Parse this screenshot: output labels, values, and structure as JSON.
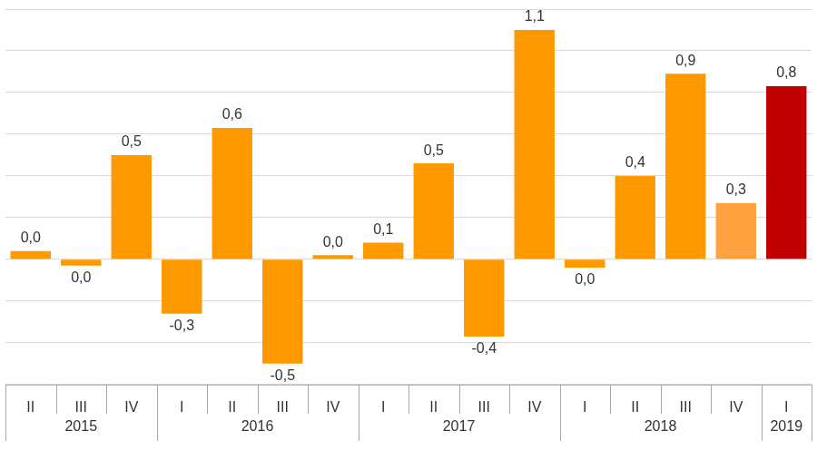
{
  "chart_data": {
    "type": "bar",
    "categories": [
      "II",
      "III",
      "IV",
      "I",
      "II",
      "III",
      "IV",
      "I",
      "II",
      "III",
      "IV",
      "I",
      "II",
      "III",
      "IV",
      "I"
    ],
    "group_labels": [
      "2015",
      "2015",
      "2015",
      "2016",
      "2016",
      "2016",
      "2016",
      "2017",
      "2017",
      "2017",
      "2017",
      "2018",
      "2018",
      "2018",
      "2018",
      "2019"
    ],
    "values": [
      0.04,
      -0.03,
      0.5,
      -0.26,
      0.63,
      -0.5,
      0.02,
      0.08,
      0.46,
      -0.37,
      1.1,
      -0.04,
      0.4,
      0.89,
      0.27,
      0.83
    ],
    "value_labels": [
      "0,0",
      "0,0",
      "0,5",
      "-0,3",
      "0,6",
      "-0,5",
      "0,0",
      "0,1",
      "0,5",
      "-0,4",
      "1,1",
      "0,0",
      "0,4",
      "0,9",
      "0,3",
      "0,8"
    ],
    "colors": [
      "#FF9900",
      "#FF9900",
      "#FF9900",
      "#FF9900",
      "#FF9900",
      "#FF9900",
      "#FF9900",
      "#FF9900",
      "#FF9900",
      "#FF9900",
      "#FF9900",
      "#FF9900",
      "#FF9900",
      "#FF9900",
      "#FFA23F",
      "#C00000"
    ],
    "data_labels": true,
    "grid": true,
    "tick_labels": "x",
    "ylim": [
      -0.6,
      1.2
    ],
    "yticks": [
      -0.6,
      -0.4,
      -0.2,
      0,
      0.2,
      0.4,
      0.6,
      0.8,
      1.0,
      1.2
    ]
  }
}
